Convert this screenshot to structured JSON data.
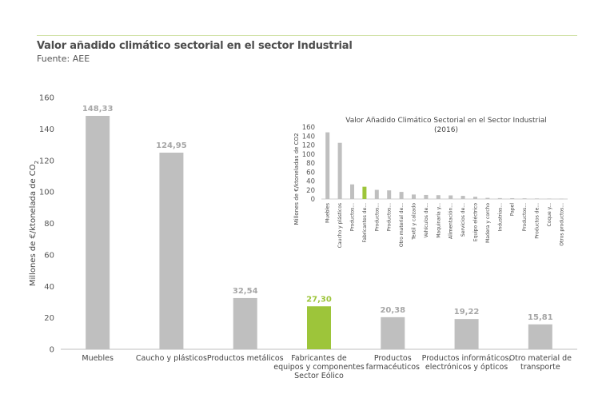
{
  "header": {
    "title": "Valor añadido climático sectorial en el sector Industrial",
    "source": "Fuente: AEE"
  },
  "colors": {
    "bar": "#bfbfbf",
    "highlight": "#9dc53a",
    "label": "#a6a6a6",
    "axis": "#bfbfbf"
  },
  "chart_data": [
    {
      "type": "bar",
      "categories": [
        [
          "Muebles"
        ],
        [
          "Caucho y plásticos"
        ],
        [
          "Productos metálicos"
        ],
        [
          "Fabricantes de",
          "equipos y componentes",
          "Sector Eólico"
        ],
        [
          "Productos",
          "farmacéuticos"
        ],
        [
          "Productos informáticos,",
          "electrónicos y ópticos"
        ],
        [
          "Otro material de",
          "transporte"
        ]
      ],
      "values": [
        148.33,
        124.95,
        32.54,
        27.3,
        20.38,
        19.22,
        15.81
      ],
      "value_labels": [
        "148,33",
        "124,95",
        "32,54",
        "27,30",
        "20,38",
        "19,22",
        "15,81"
      ],
      "highlight_index": 3,
      "ylabel": "Millones de €/ktonelada de CO",
      "ylabel_subscript": "2",
      "ylim": [
        0,
        160
      ],
      "yticks": [
        "0",
        "20",
        "40",
        "60",
        "80",
        "100",
        "120",
        "140",
        "160"
      ],
      "grid": false
    },
    {
      "type": "bar",
      "title_lines": [
        "Valor Añadido Climático Sectorial en el Sector Industrial",
        "(2016)"
      ],
      "ylabel": "Millones de €/ktoneladas de CO2",
      "ylim": [
        0,
        160
      ],
      "yticks": [
        "0",
        "20",
        "40",
        "60",
        "80",
        "100",
        "120",
        "140",
        "160"
      ],
      "categories": [
        "Muebles",
        "Caucho y plásticos",
        "Productos...",
        "Fabricantes de...",
        "Productos...",
        "Productos...",
        "Otro material de...",
        "Textil y calzado",
        "Vehículos de...",
        "Maquinaria y...",
        "Alimentación...",
        "Servicios de...",
        "Equipo eléctrico",
        "Madera y corcho",
        "Industrias...",
        "Papel",
        "Productos...",
        "Productos de...",
        "Coque y...",
        "Otros productos..."
      ],
      "values": [
        148.33,
        124.95,
        32.54,
        27.3,
        20.38,
        19.22,
        15.81,
        10,
        9,
        8.5,
        8,
        7,
        5,
        2.5,
        2,
        1.8,
        1.5,
        1.2,
        1,
        0.8
      ],
      "highlight_index": 3,
      "grid": false
    }
  ]
}
